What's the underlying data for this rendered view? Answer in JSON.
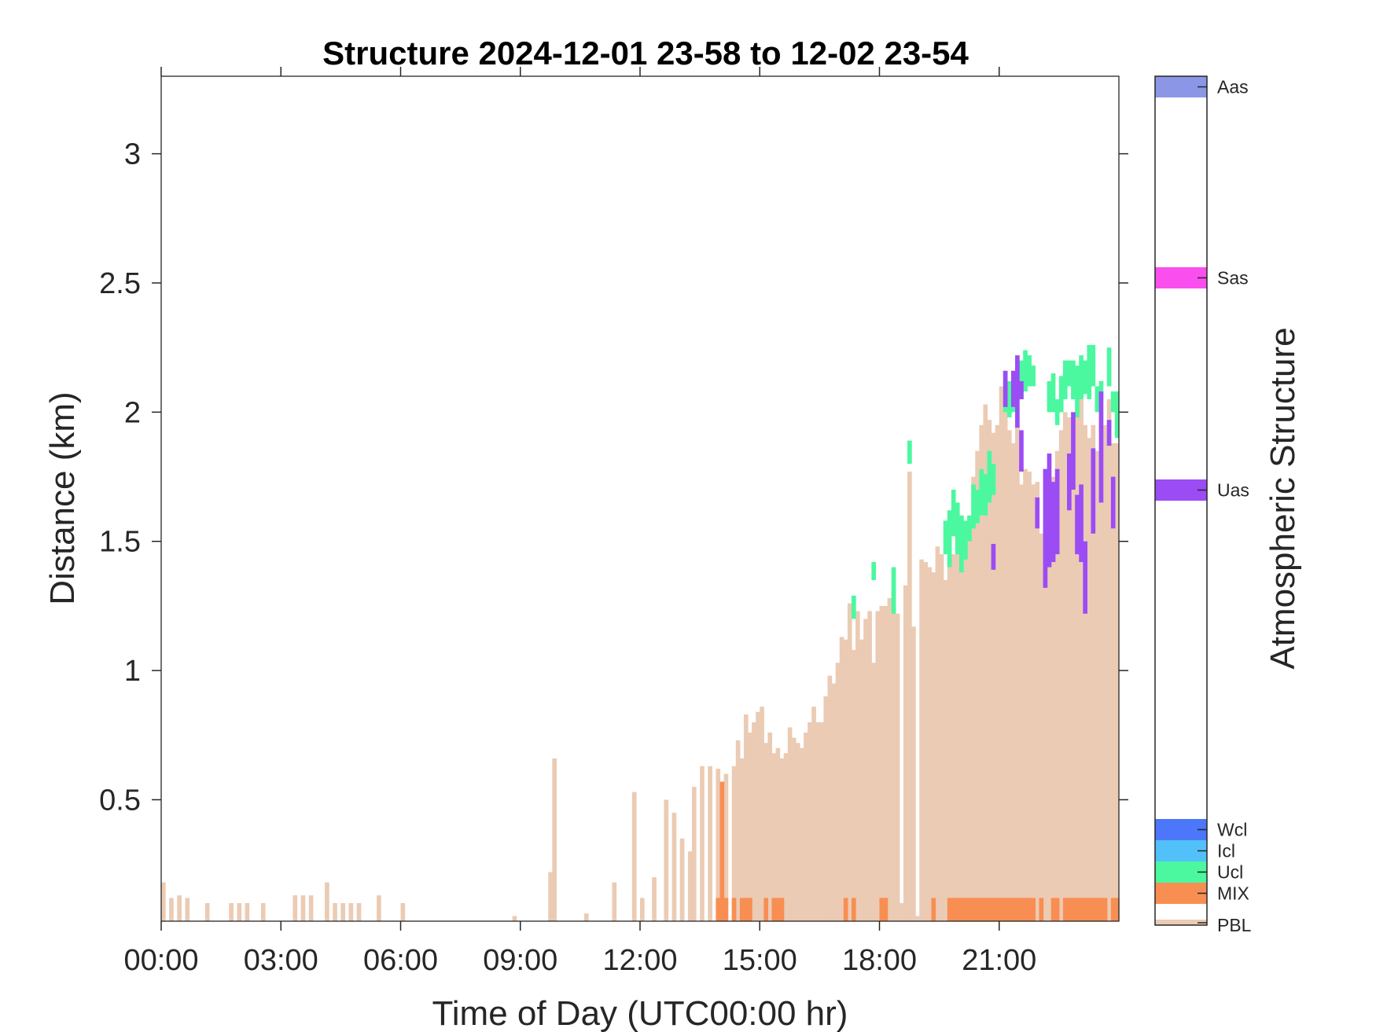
{
  "chart_data": {
    "type": "bar",
    "title": "Structure 2024-12-01 23-58 to 12-02 23-54",
    "xlabel": "Time of Day (UTC00:00 hr)",
    "ylabel": "Distance (km)",
    "xlim_hours": [
      0,
      24
    ],
    "ylim_km": [
      0.03,
      3.3
    ],
    "x_ticks": [
      "00:00",
      "03:00",
      "06:00",
      "09:00",
      "12:00",
      "15:00",
      "18:00",
      "21:00"
    ],
    "y_ticks": [
      "0.5",
      "1",
      "1.5",
      "2",
      "2.5",
      "3"
    ],
    "colorbar": {
      "label": "Atmospheric Structure",
      "categories": [
        {
          "name": "PBL",
          "color": "#EBCBB4"
        },
        {
          "name": "MIX",
          "color": "#F98E52"
        },
        {
          "name": "Ucl",
          "color": "#4BF89F"
        },
        {
          "name": "Icl",
          "color": "#52C1FA"
        },
        {
          "name": "Wcl",
          "color": "#4C77FA"
        },
        {
          "name": "Uas",
          "color": "#9B4CF5"
        },
        {
          "name": "Sas",
          "color": "#FA4FEE"
        },
        {
          "name": "Aas",
          "color": "#8B97E6"
        }
      ]
    },
    "series": [
      {
        "name": "PBL",
        "color": "#EBCBB4",
        "x": [
          0.0,
          0.2,
          0.4,
          0.6,
          1.1,
          1.7,
          1.9,
          2.1,
          2.5,
          3.3,
          3.5,
          3.7,
          4.1,
          4.3,
          4.5,
          4.7,
          4.9,
          5.4,
          6.0,
          8.8,
          9.7,
          9.8,
          10.6,
          11.3,
          11.8,
          12.0,
          12.3,
          12.6,
          12.8,
          13.0,
          13.2,
          13.3,
          13.5,
          13.7,
          13.9,
          14.1,
          14.3,
          14.4,
          14.5,
          14.6,
          14.7,
          14.8,
          14.9,
          15.0,
          15.1,
          15.2,
          15.3,
          15.4,
          15.5,
          15.6,
          15.7,
          15.8,
          15.9,
          16.0,
          16.1,
          16.2,
          16.3,
          16.4,
          16.5,
          16.6,
          16.7,
          16.8,
          16.9,
          17.0,
          17.1,
          17.2,
          17.3,
          17.4,
          17.5,
          17.6,
          17.7,
          17.8,
          17.9,
          18.0,
          18.1,
          18.2,
          18.3,
          18.4,
          18.5,
          18.6,
          18.7,
          18.8,
          18.9,
          19.0,
          19.1,
          19.2,
          19.3,
          19.4,
          19.5,
          19.6,
          19.7,
          19.8,
          19.9,
          20.0,
          20.1,
          20.2,
          20.3,
          20.4,
          20.5,
          20.6,
          20.7,
          20.8,
          20.9,
          21.0,
          21.1,
          21.2,
          21.3,
          21.4,
          21.5,
          21.6,
          21.7,
          21.8,
          21.9,
          22.0,
          22.1,
          22.2,
          22.3,
          22.4,
          22.5,
          22.6,
          22.7,
          22.8,
          22.9,
          23.0,
          23.1,
          23.2,
          23.3,
          23.4,
          23.5,
          23.6,
          23.7,
          23.8,
          23.9
        ],
        "values": [
          0.18,
          0.12,
          0.13,
          0.12,
          0.1,
          0.1,
          0.1,
          0.1,
          0.1,
          0.13,
          0.13,
          0.13,
          0.18,
          0.1,
          0.1,
          0.1,
          0.1,
          0.13,
          0.1,
          0.05,
          0.22,
          0.66,
          0.06,
          0.18,
          0.53,
          0.12,
          0.2,
          0.5,
          0.45,
          0.35,
          0.3,
          0.55,
          0.63,
          0.63,
          0.62,
          0.6,
          0.63,
          0.73,
          0.66,
          0.83,
          0.76,
          0.8,
          0.84,
          0.86,
          0.72,
          0.76,
          0.68,
          0.7,
          0.66,
          0.68,
          0.78,
          0.74,
          0.72,
          0.7,
          0.76,
          0.8,
          0.86,
          0.8,
          0.8,
          0.9,
          0.98,
          0.95,
          1.03,
          1.13,
          1.12,
          1.26,
          1.08,
          1.23,
          1.12,
          1.2,
          1.23,
          1.03,
          1.23,
          1.25,
          1.25,
          1.28,
          1.32,
          1.22,
          0.1,
          1.33,
          1.77,
          1.17,
          0.05,
          1.43,
          1.42,
          1.4,
          1.38,
          1.48,
          1.45,
          1.35,
          1.43,
          1.45,
          1.55,
          1.6,
          1.5,
          1.6,
          1.75,
          1.85,
          1.95,
          2.03,
          1.97,
          1.92,
          1.95,
          2.1,
          2.1,
          1.93,
          1.88,
          1.97,
          1.72,
          1.78,
          1.77,
          1.72,
          1.73,
          1.53,
          1.56,
          1.66,
          1.75,
          1.85,
          1.93,
          2.0,
          1.98,
          1.9,
          2.0,
          2.07,
          1.95,
          1.9,
          1.95,
          1.85,
          1.85,
          1.95,
          2.05,
          1.88,
          1.88
        ]
      },
      {
        "name": "MIX",
        "color": "#F98E52",
        "x": [
          13.9,
          14.0,
          14.1,
          14.3,
          14.5,
          14.6,
          14.7,
          15.1,
          15.3,
          15.4,
          15.5,
          17.1,
          17.3,
          18.0,
          18.1,
          19.3,
          19.7,
          19.8,
          19.9,
          20.0,
          20.1,
          20.2,
          20.3,
          20.4,
          20.5,
          20.6,
          20.7,
          20.8,
          20.9,
          21.0,
          21.1,
          21.2,
          21.3,
          21.4,
          21.5,
          21.6,
          21.7,
          21.8,
          22.0,
          22.3,
          22.4,
          22.6,
          22.7,
          22.8,
          22.9,
          23.0,
          23.1,
          23.2,
          23.3,
          23.4,
          23.5,
          23.6,
          23.8,
          23.9
        ],
        "bottom": 0.03,
        "values": [
          0.12,
          0.57,
          0.12,
          0.12,
          0.12,
          0.12,
          0.12,
          0.12,
          0.12,
          0.12,
          0.12,
          0.12,
          0.12,
          0.12,
          0.12,
          0.12,
          0.12,
          0.12,
          0.12,
          0.12,
          0.12,
          0.12,
          0.12,
          0.12,
          0.12,
          0.12,
          0.12,
          0.12,
          0.12,
          0.12,
          0.12,
          0.12,
          0.12,
          0.12,
          0.12,
          0.12,
          0.12,
          0.12,
          0.12,
          0.12,
          0.12,
          0.12,
          0.12,
          0.12,
          0.12,
          0.12,
          0.12,
          0.12,
          0.12,
          0.12,
          0.12,
          0.12,
          0.12,
          0.12
        ]
      },
      {
        "name": "Ucl",
        "color": "#4BF89F",
        "segments": [
          [
            17.3,
            1.2,
            1.29
          ],
          [
            17.8,
            1.35,
            1.42
          ],
          [
            18.3,
            1.22,
            1.4
          ],
          [
            18.7,
            1.8,
            1.89
          ],
          [
            19.6,
            1.45,
            1.58
          ],
          [
            19.7,
            1.4,
            1.62
          ],
          [
            19.8,
            1.52,
            1.7
          ],
          [
            19.9,
            1.45,
            1.65
          ],
          [
            20.0,
            1.38,
            1.6
          ],
          [
            20.1,
            1.43,
            1.58
          ],
          [
            20.2,
            1.5,
            1.6
          ],
          [
            20.3,
            1.55,
            1.72
          ],
          [
            20.4,
            1.57,
            1.7
          ],
          [
            20.5,
            1.6,
            1.78
          ],
          [
            20.6,
            1.6,
            1.76
          ],
          [
            20.7,
            1.65,
            1.85
          ],
          [
            20.8,
            1.68,
            1.8
          ],
          [
            21.1,
            2.0,
            2.16
          ],
          [
            21.2,
            1.98,
            2.12
          ],
          [
            21.3,
            2.0,
            2.16
          ],
          [
            21.5,
            2.05,
            2.2
          ],
          [
            21.6,
            2.08,
            2.24
          ],
          [
            21.7,
            2.1,
            2.22
          ],
          [
            21.8,
            2.1,
            2.18
          ],
          [
            22.2,
            2.0,
            2.12
          ],
          [
            22.3,
            2.0,
            2.15
          ],
          [
            22.4,
            1.95,
            2.05
          ],
          [
            22.5,
            2.0,
            2.14
          ],
          [
            22.6,
            2.05,
            2.2
          ],
          [
            22.7,
            2.1,
            2.2
          ],
          [
            22.8,
            2.05,
            2.2
          ],
          [
            22.9,
            1.98,
            2.18
          ],
          [
            23.0,
            2.05,
            2.22
          ],
          [
            23.1,
            2.07,
            2.2
          ],
          [
            23.2,
            2.05,
            2.26
          ],
          [
            23.3,
            2.1,
            2.26
          ],
          [
            23.4,
            2.0,
            2.1
          ],
          [
            23.5,
            2.05,
            2.12
          ],
          [
            23.7,
            2.1,
            2.25
          ],
          [
            23.8,
            2.0,
            2.08
          ],
          [
            23.9,
            1.9,
            2.08
          ]
        ]
      },
      {
        "name": "Uas",
        "color": "#9B4CF5",
        "segments": [
          [
            20.8,
            1.39,
            1.49
          ],
          [
            21.1,
            2.02,
            2.16
          ],
          [
            21.3,
            2.02,
            2.16
          ],
          [
            21.4,
            1.94,
            2.22
          ],
          [
            21.5,
            1.77,
            1.93
          ],
          [
            21.5,
            2.05,
            2.12
          ],
          [
            21.9,
            1.55,
            1.67
          ],
          [
            22.1,
            1.32,
            1.78
          ],
          [
            22.2,
            1.4,
            1.84
          ],
          [
            22.3,
            1.42,
            1.73
          ],
          [
            22.4,
            1.45,
            1.78
          ],
          [
            22.7,
            1.62,
            1.84
          ],
          [
            22.8,
            1.7,
            2.0
          ],
          [
            22.9,
            1.45,
            1.68
          ],
          [
            23.0,
            1.42,
            1.72
          ],
          [
            23.1,
            1.22,
            1.5
          ],
          [
            23.3,
            1.53,
            1.86
          ],
          [
            23.5,
            1.65,
            2.08
          ],
          [
            23.7,
            1.87,
            1.97
          ],
          [
            23.8,
            1.55,
            1.75
          ]
        ]
      }
    ]
  }
}
